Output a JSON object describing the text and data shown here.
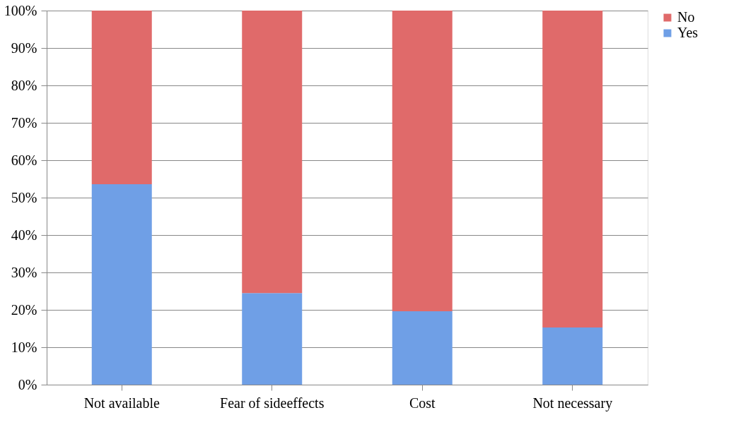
{
  "chart_data": {
    "type": "bar",
    "stacked": true,
    "categories": [
      "Not available",
      "Fear of sideeffects",
      "Cost",
      "Not necessary"
    ],
    "series": [
      {
        "name": "Yes",
        "color": "#6f9fe6",
        "values": [
          53.6,
          24.5,
          19.6,
          15.3
        ]
      },
      {
        "name": "No",
        "color": "#e06a6a",
        "values": [
          46.4,
          75.5,
          80.4,
          84.7
        ]
      }
    ],
    "ylim": [
      0,
      100
    ],
    "yticks": [
      {
        "value": 0,
        "label": "0%"
      },
      {
        "value": 10,
        "label": "10%"
      },
      {
        "value": 20,
        "label": "20%"
      },
      {
        "value": 30,
        "label": "30%"
      },
      {
        "value": 40,
        "label": "40%"
      },
      {
        "value": 50,
        "label": "50%"
      },
      {
        "value": 60,
        "label": "60%"
      },
      {
        "value": 70,
        "label": "70%"
      },
      {
        "value": 80,
        "label": "80%"
      },
      {
        "value": 90,
        "label": "90%"
      },
      {
        "value": 100,
        "label": "100%"
      }
    ],
    "grid": "y",
    "legend": "right"
  }
}
